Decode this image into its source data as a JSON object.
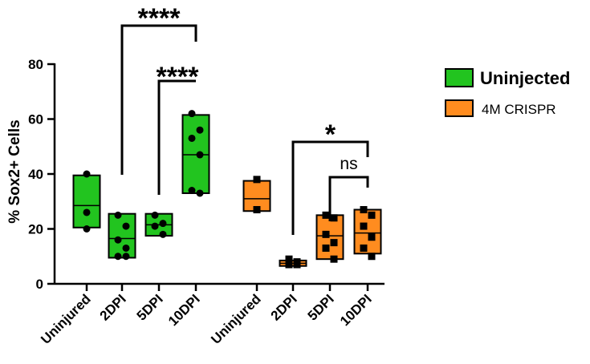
{
  "chart_data": {
    "type": "floating-bar",
    "ylabel": "% Sox2+ Cells",
    "xlabel": "",
    "ylim": [
      0,
      80
    ],
    "yticks": [
      0,
      20,
      40,
      60,
      80
    ],
    "legend_position": "right",
    "series": [
      {
        "name": "Uninjected",
        "color": "#22c41f",
        "marker": "circle",
        "groups": [
          {
            "label": "Uninjured",
            "min": 20.5,
            "max": 39.5,
            "median": 28.5,
            "points": [
              40,
              26,
              20
            ]
          },
          {
            "label": "2DPI",
            "min": 9.5,
            "max": 25.5,
            "median": 16.5,
            "points": [
              25,
              21,
              16,
              13,
              10,
              10
            ]
          },
          {
            "label": "5DPI",
            "min": 17.5,
            "max": 25.5,
            "median": 21.5,
            "points": [
              25,
              22,
              21,
              18
            ]
          },
          {
            "label": "10DPI",
            "min": 33,
            "max": 61.5,
            "median": 47,
            "points": [
              62,
              56,
              53,
              47,
              34,
              33
            ]
          }
        ]
      },
      {
        "name": "4M CRISPR",
        "color": "#ff8c1f",
        "marker": "square",
        "groups": [
          {
            "label": "Uninjured",
            "min": 26.5,
            "max": 37.5,
            "median": 31,
            "points": [
              38,
              27,
              27
            ]
          },
          {
            "label": "2DPI",
            "min": 6.5,
            "max": 8.5,
            "median": 7.5,
            "points": [
              9,
              8,
              7,
              7
            ]
          },
          {
            "label": "5DPI",
            "min": 9,
            "max": 25,
            "median": 17.5,
            "points": [
              25,
              24,
              18,
              15,
              13,
              9
            ]
          },
          {
            "label": "10DPI",
            "min": 11,
            "max": 27,
            "median": 18.5,
            "points": [
              27,
              25,
              21,
              17,
              13,
              10
            ]
          }
        ]
      }
    ],
    "annotations": [
      {
        "text": "****",
        "from": "Uninjected 2DPI",
        "to": "Uninjected 10DPI"
      },
      {
        "text": "****",
        "from": "Uninjected 5DPI",
        "to": "Uninjected 10DPI"
      },
      {
        "text": "*",
        "from": "4M CRISPR 2DPI",
        "to": "4M CRISPR 10DPI"
      },
      {
        "text": "ns",
        "from": "4M CRISPR 5DPI",
        "to": "4M CRISPR 10DPI"
      }
    ]
  }
}
